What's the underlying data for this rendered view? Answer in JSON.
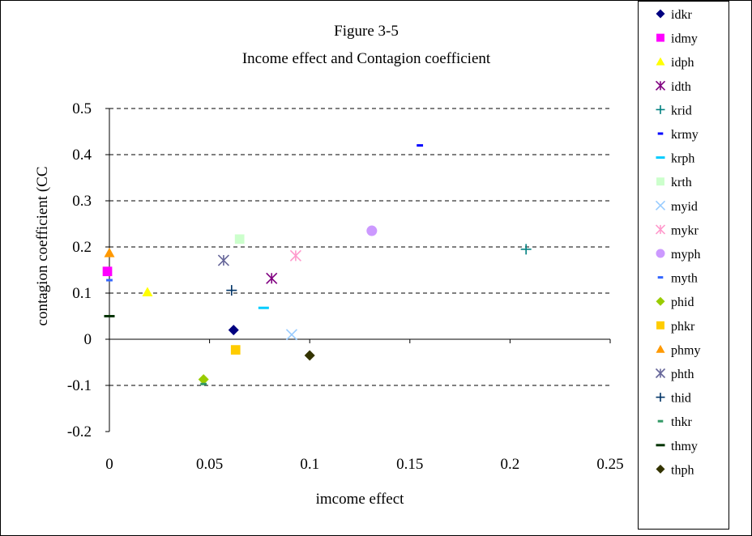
{
  "chart_data": {
    "type": "scatter",
    "title": "Figure 3-5",
    "subtitle": "Income effect and Contagion coefficient",
    "xlabel": "imcome effect",
    "ylabel": "contagion coefficient (CC",
    "xlim": [
      0,
      0.25
    ],
    "ylim": [
      -0.2,
      0.5
    ],
    "x_ticks": [
      0,
      0.05,
      0.1,
      0.15,
      0.2,
      0.25
    ],
    "x_tick_labels": [
      "0",
      "0.05",
      "0.1",
      "0.15",
      "0.2",
      "0.25"
    ],
    "y_ticks": [
      -0.2,
      -0.1,
      0,
      0.1,
      0.2,
      0.3,
      0.4,
      0.5
    ],
    "y_tick_labels": [
      "-0.2",
      "-0.1",
      "0",
      "0.1",
      "0.2",
      "0.3",
      "0.4",
      "0.5"
    ],
    "grid": "horizontal-dashed",
    "legend_position": "right",
    "series": [
      {
        "name": "idkr",
        "marker": "diamond",
        "color": "#000080",
        "x": 0.062,
        "y": 0.02
      },
      {
        "name": "idmy",
        "marker": "square",
        "color": "#ff00ff",
        "x": -0.001,
        "y": 0.147
      },
      {
        "name": "idph",
        "marker": "triangle",
        "color": "#ffff00",
        "x": 0.019,
        "y": 0.102
      },
      {
        "name": "idth",
        "marker": "asterisk",
        "color": "#800080",
        "x": 0.081,
        "y": 0.132
      },
      {
        "name": "krid",
        "marker": "plus",
        "color": "#008080",
        "x": 0.208,
        "y": 0.195
      },
      {
        "name": "krmy",
        "marker": "short-dash",
        "color": "#0000ff",
        "x": 0.155,
        "y": 0.42
      },
      {
        "name": "krph",
        "marker": "long-dash",
        "color": "#00ccff",
        "x": 0.077,
        "y": 0.068
      },
      {
        "name": "krth",
        "marker": "square",
        "color": "#ccffcc",
        "x": 0.065,
        "y": 0.217
      },
      {
        "name": "myid",
        "marker": "x",
        "color": "#99ccff",
        "x": 0.091,
        "y": 0.01
      },
      {
        "name": "mykr",
        "marker": "asterisk",
        "color": "#ff99cc",
        "x": 0.093,
        "y": 0.181
      },
      {
        "name": "myph",
        "marker": "circle",
        "color": "#cc99ff",
        "x": 0.131,
        "y": 0.235
      },
      {
        "name": "myth",
        "marker": "short-dash",
        "color": "#3366ff",
        "x": 0.0,
        "y": 0.128
      },
      {
        "name": "phid",
        "marker": "diamond",
        "color": "#99cc00",
        "x": 0.047,
        "y": -0.087
      },
      {
        "name": "phkr",
        "marker": "square",
        "color": "#ffcc00",
        "x": 0.063,
        "y": -0.023
      },
      {
        "name": "phmy",
        "marker": "triangle",
        "color": "#ff9900",
        "x": 0.0,
        "y": 0.187
      },
      {
        "name": "phth",
        "marker": "x-asterisk",
        "color": "#666699",
        "x": 0.057,
        "y": 0.171
      },
      {
        "name": "thid",
        "marker": "plus",
        "color": "#003366",
        "x": 0.061,
        "y": 0.106
      },
      {
        "name": "thkr",
        "marker": "short-dash",
        "color": "#339966",
        "x": 0.047,
        "y": -0.097
      },
      {
        "name": "thmy",
        "marker": "long-dash",
        "color": "#003300",
        "x": 0.0,
        "y": 0.05
      },
      {
        "name": "thph",
        "marker": "diamond",
        "color": "#333300",
        "x": 0.1,
        "y": -0.035
      }
    ]
  }
}
